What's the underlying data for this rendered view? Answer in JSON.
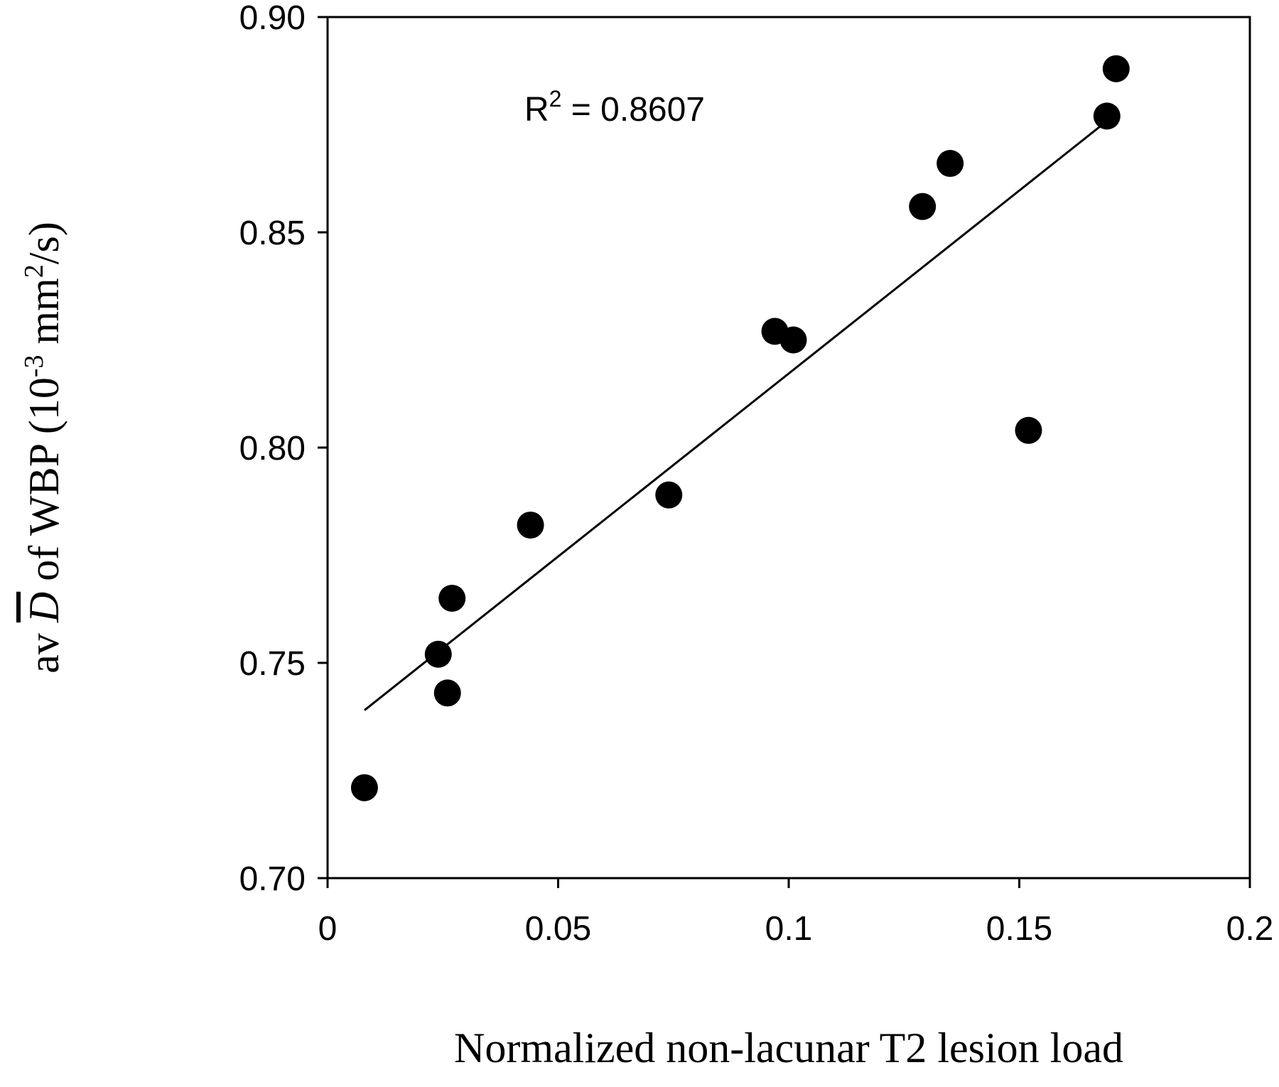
{
  "chart_data": {
    "type": "scatter",
    "title": "",
    "xlabel": "Normalized non-lacunar T2 lesion load",
    "ylabel": {
      "prefix": "av ",
      "symbol": "D",
      "mid": " of WBP (10",
      "sup1": "-3",
      "mid2": " mm",
      "sup2": "2",
      "suffix": "/s)"
    },
    "xlim": [
      0,
      0.2
    ],
    "ylim": [
      0.7,
      0.9
    ],
    "xticks": [
      0,
      0.05,
      0.1,
      0.15,
      0.2
    ],
    "xtick_labels": [
      "0",
      "0.05",
      "0.1",
      "0.15",
      "0.2"
    ],
    "yticks": [
      0.7,
      0.75,
      0.8,
      0.85,
      0.9
    ],
    "ytick_labels": [
      "0.70",
      "0.75",
      "0.80",
      "0.85",
      "0.90"
    ],
    "grid": false,
    "annotation": {
      "base": "R",
      "sup": "2",
      "rest": " = 0.8607"
    },
    "points": [
      {
        "x": 0.008,
        "y": 0.721
      },
      {
        "x": 0.024,
        "y": 0.752
      },
      {
        "x": 0.026,
        "y": 0.743
      },
      {
        "x": 0.027,
        "y": 0.765
      },
      {
        "x": 0.044,
        "y": 0.782
      },
      {
        "x": 0.074,
        "y": 0.789
      },
      {
        "x": 0.097,
        "y": 0.827
      },
      {
        "x": 0.101,
        "y": 0.825
      },
      {
        "x": 0.129,
        "y": 0.856
      },
      {
        "x": 0.135,
        "y": 0.866
      },
      {
        "x": 0.152,
        "y": 0.804
      },
      {
        "x": 0.169,
        "y": 0.877
      },
      {
        "x": 0.171,
        "y": 0.888
      }
    ],
    "trendline": {
      "x": [
        0.008,
        0.168
      ],
      "y": [
        0.739,
        0.875
      ]
    },
    "colors": {
      "marker": "#000000",
      "line": "#000000",
      "axis": "#000000"
    }
  }
}
